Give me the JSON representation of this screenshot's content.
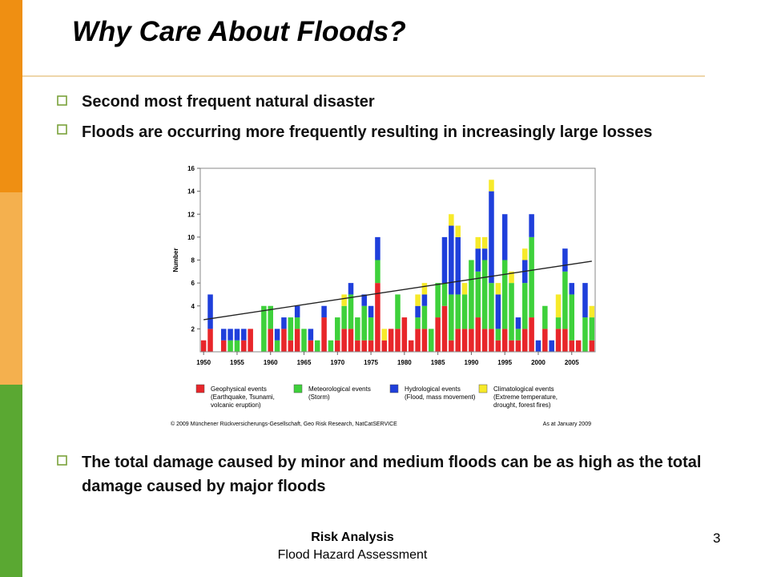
{
  "slide": {
    "title": "Why Care About Floods?",
    "bullets": [
      "Second most frequent natural disaster",
      "Floods are occurring more frequently resulting in increasingly large losses"
    ],
    "bullets_after": [
      "The total damage caused by minor and medium floods can be as high as the total damage caused by major floods"
    ],
    "footer": {
      "line1": "Risk Analysis",
      "line2": "Flood Hazard Assessment"
    },
    "page_number": "3"
  },
  "chart_data": {
    "type": "stacked-bar",
    "y_label": "Number",
    "x": [
      1950,
      1951,
      1952,
      1953,
      1954,
      1955,
      1956,
      1957,
      1958,
      1959,
      1960,
      1961,
      1962,
      1963,
      1964,
      1965,
      1966,
      1967,
      1968,
      1969,
      1970,
      1971,
      1972,
      1973,
      1974,
      1975,
      1976,
      1977,
      1978,
      1979,
      1980,
      1981,
      1982,
      1983,
      1984,
      1985,
      1986,
      1987,
      1988,
      1989,
      1990,
      1991,
      1992,
      1993,
      1994,
      1995,
      1996,
      1997,
      1998,
      1999,
      2000,
      2001,
      2002,
      2003,
      2004,
      2005,
      2006,
      2007,
      2008
    ],
    "xlim": [
      1949.5,
      2008.5
    ],
    "xticks": [
      1950,
      1955,
      1960,
      1965,
      1970,
      1975,
      1980,
      1985,
      1990,
      1995,
      2000,
      2005
    ],
    "ylim": [
      0,
      16
    ],
    "yticks": [
      2,
      4,
      6,
      8,
      10,
      12,
      14,
      16
    ],
    "series": [
      {
        "name": "Geophysical events",
        "description": [
          "(Earthquake, Tsunami,",
          "volcanic eruption)"
        ],
        "color": "#e8262a",
        "values": [
          1,
          2,
          0,
          1,
          0,
          0,
          1,
          2,
          0,
          0,
          2,
          0,
          2,
          1,
          2,
          0,
          1,
          0,
          3,
          0,
          1,
          2,
          2,
          1,
          1,
          1,
          6,
          1,
          2,
          2,
          3,
          1,
          2,
          2,
          0,
          3,
          4,
          1,
          2,
          2,
          2,
          3,
          2,
          2,
          1,
          2,
          1,
          1,
          2,
          3,
          0,
          2,
          0,
          2,
          2,
          1,
          1,
          0,
          1
        ]
      },
      {
        "name": "Meteorological events",
        "description": [
          "(Storm)"
        ],
        "color": "#3ed13b",
        "values": [
          0,
          0,
          0,
          0,
          1,
          1,
          0,
          0,
          0,
          4,
          2,
          1,
          0,
          2,
          1,
          2,
          0,
          1,
          0,
          1,
          2,
          2,
          3,
          2,
          3,
          2,
          2,
          0,
          0,
          3,
          0,
          0,
          1,
          2,
          2,
          3,
          2,
          4,
          3,
          3,
          6,
          4,
          6,
          4,
          1,
          6,
          5,
          1,
          4,
          7,
          0,
          2,
          0,
          1,
          5,
          4,
          0,
          3,
          2
        ]
      },
      {
        "name": "Hydrological events",
        "description": [
          "(Flood, mass movement)"
        ],
        "color": "#1f3fdb",
        "values": [
          0,
          3,
          0,
          1,
          1,
          1,
          1,
          0,
          0,
          0,
          0,
          1,
          1,
          0,
          1,
          0,
          1,
          0,
          1,
          0,
          0,
          0,
          1,
          0,
          1,
          1,
          2,
          0,
          0,
          0,
          0,
          0,
          1,
          1,
          0,
          0,
          4,
          6,
          5,
          0,
          0,
          2,
          1,
          8,
          3,
          4,
          0,
          1,
          2,
          2,
          1,
          0,
          1,
          0,
          2,
          1,
          0,
          3,
          0
        ]
      },
      {
        "name": "Climatological events",
        "description": [
          "(Extreme temperature,",
          "drought, forest fires)"
        ],
        "color": "#f7ea2a",
        "values": [
          0,
          0,
          0,
          0,
          0,
          0,
          0,
          0,
          0,
          0,
          0,
          0,
          0,
          0,
          0,
          0,
          0,
          0,
          0,
          0,
          0,
          1,
          0,
          0,
          0,
          0,
          0,
          1,
          0,
          0,
          0,
          0,
          1,
          1,
          0,
          0,
          0,
          1,
          1,
          1,
          0,
          1,
          1,
          1,
          1,
          0,
          1,
          0,
          1,
          0,
          0,
          0,
          0,
          2,
          0,
          0,
          0,
          0,
          1
        ]
      }
    ],
    "trend": {
      "x": [
        1950,
        2008
      ],
      "values": [
        2.8,
        7.9
      ]
    },
    "source": "© 2009 Münchener Rückversicherungs-Gesellschaft, Geo Risk Research, NatCatSERVICE",
    "note": "As at January 2009"
  }
}
